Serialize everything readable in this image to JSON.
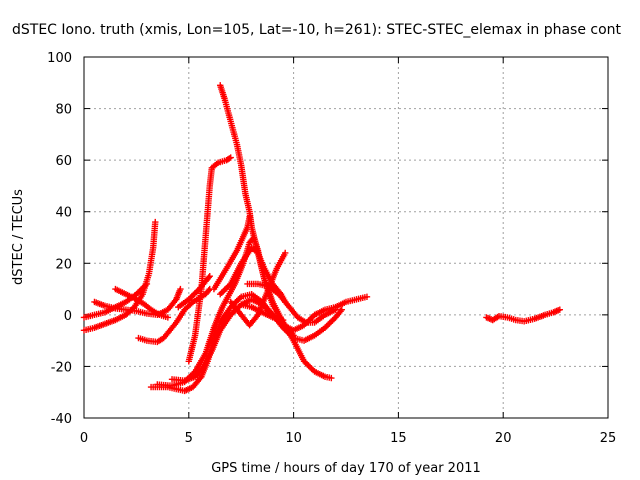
{
  "chart_data": {
    "type": "scatter",
    "title": "dSTEC Iono. truth (xmis, Lon=105, Lat=-10, h=261): STEC-STEC_elemax in phase cont",
    "xlabel": "GPS time / hours of day 170 of year 2011",
    "ylabel": "dSTEC  / TECUs",
    "xlim": [
      0,
      25
    ],
    "ylim": [
      -40,
      100
    ],
    "xticks": [
      0,
      5,
      10,
      15,
      20,
      25
    ],
    "yticks": [
      -40,
      -20,
      0,
      20,
      40,
      60,
      80,
      100
    ],
    "grid": true,
    "marker": "+",
    "color": "#ff0000",
    "series": [
      {
        "points": [
          [
            0,
            -6
          ],
          [
            0.5,
            -5
          ],
          [
            1,
            -3.5
          ],
          [
            1.5,
            -2
          ],
          [
            2,
            0
          ],
          [
            2.4,
            3
          ],
          [
            2.8,
            8
          ],
          [
            3.1,
            16
          ],
          [
            3.3,
            26
          ],
          [
            3.4,
            36
          ]
        ]
      },
      {
        "points": [
          [
            0,
            -1
          ],
          [
            0.5,
            0
          ],
          [
            1,
            1
          ],
          [
            1.5,
            3
          ],
          [
            2,
            5
          ],
          [
            2.5,
            8
          ],
          [
            3,
            12
          ]
        ]
      },
      {
        "points": [
          [
            0.5,
            5
          ],
          [
            1,
            3.5
          ],
          [
            1.5,
            2.5
          ],
          [
            2,
            2
          ],
          [
            2.5,
            1.5
          ],
          [
            3,
            0.5
          ],
          [
            3.5,
            0
          ],
          [
            4,
            2
          ],
          [
            4.4,
            6
          ],
          [
            4.6,
            10
          ]
        ]
      },
      {
        "points": [
          [
            1.5,
            10
          ],
          [
            2,
            8
          ],
          [
            2.5,
            6
          ],
          [
            2.9,
            4
          ],
          [
            3.2,
            2
          ],
          [
            3.6,
            0
          ],
          [
            4,
            -1
          ]
        ]
      },
      {
        "points": [
          [
            2.6,
            -9
          ],
          [
            3,
            -10
          ],
          [
            3.5,
            -10.5
          ],
          [
            3.8,
            -9
          ],
          [
            4.1,
            -6
          ],
          [
            4.4,
            -3
          ],
          [
            4.8,
            2
          ],
          [
            5.2,
            5
          ],
          [
            5.8,
            8
          ],
          [
            6,
            10
          ]
        ]
      },
      {
        "points": [
          [
            4.5,
            3
          ],
          [
            5,
            6
          ],
          [
            5.5,
            10
          ],
          [
            5.8,
            13
          ],
          [
            6,
            15
          ]
        ]
      },
      {
        "points": [
          [
            3.2,
            -28
          ],
          [
            4,
            -28
          ],
          [
            4.8,
            -29.5
          ],
          [
            5.2,
            -28
          ],
          [
            5.6,
            -24
          ],
          [
            5.9,
            -18
          ],
          [
            6.2,
            -10
          ],
          [
            6.5,
            -3
          ],
          [
            7,
            3
          ],
          [
            7.5,
            7
          ],
          [
            8,
            8
          ],
          [
            8.5,
            5
          ],
          [
            9,
            0
          ],
          [
            9.5,
            -5
          ],
          [
            10,
            -9
          ],
          [
            10.5,
            -10
          ],
          [
            11,
            -8
          ],
          [
            11.5,
            -5
          ],
          [
            12,
            -1
          ],
          [
            12.3,
            2
          ]
        ]
      },
      {
        "points": [
          [
            3.5,
            -27
          ],
          [
            4.2,
            -27.5
          ],
          [
            4.8,
            -26
          ],
          [
            5.3,
            -22
          ],
          [
            5.8,
            -15
          ],
          [
            6.2,
            -5
          ],
          [
            6.6,
            3
          ],
          [
            7.2,
            12
          ],
          [
            7.6,
            20
          ],
          [
            7.9,
            28
          ],
          [
            8.1,
            30
          ],
          [
            8.3,
            25
          ],
          [
            8.6,
            14
          ],
          [
            9,
            4
          ],
          [
            9.5,
            -3
          ],
          [
            10,
            -8
          ]
        ]
      },
      {
        "points": [
          [
            4.2,
            -25
          ],
          [
            4.8,
            -25.5
          ],
          [
            5.3,
            -24
          ],
          [
            5.7,
            -20
          ],
          [
            6.1,
            -14
          ],
          [
            6.5,
            -6
          ],
          [
            7,
            0
          ],
          [
            7.5,
            4
          ],
          [
            8,
            6
          ],
          [
            8.5,
            4
          ],
          [
            9,
            0
          ],
          [
            9.5,
            -4
          ],
          [
            10,
            -6
          ],
          [
            10.5,
            -4
          ],
          [
            11,
            0
          ],
          [
            11.5,
            2
          ],
          [
            12,
            3
          ],
          [
            12.5,
            5
          ],
          [
            13,
            6
          ],
          [
            13.5,
            7
          ]
        ]
      },
      {
        "points": [
          [
            5.0,
            -18
          ],
          [
            5.3,
            -8
          ],
          [
            5.6,
            10
          ],
          [
            5.8,
            30
          ],
          [
            6,
            50
          ],
          [
            6.1,
            57
          ],
          [
            6.4,
            59
          ],
          [
            6.8,
            60
          ],
          [
            7,
            61
          ]
        ]
      },
      {
        "points": [
          [
            6.5,
            89
          ],
          [
            6.7,
            84
          ],
          [
            7,
            75
          ],
          [
            7.3,
            66
          ],
          [
            7.5,
            58
          ],
          [
            7.7,
            47
          ],
          [
            7.9,
            40
          ],
          [
            8.0,
            34
          ],
          [
            8.3,
            24
          ],
          [
            8.6,
            14
          ],
          [
            9,
            5
          ],
          [
            9.5,
            -3
          ],
          [
            10,
            -10
          ],
          [
            10.5,
            -18
          ],
          [
            11,
            -22
          ],
          [
            11.5,
            -24
          ],
          [
            11.8,
            -24.5
          ]
        ]
      },
      {
        "points": [
          [
            6.5,
            8
          ],
          [
            7,
            12
          ],
          [
            7.5,
            20
          ],
          [
            8,
            26
          ],
          [
            8.3,
            24
          ],
          [
            8.6,
            18
          ],
          [
            9,
            12
          ],
          [
            9.4,
            8
          ],
          [
            9.6,
            5
          ]
        ]
      },
      {
        "points": [
          [
            6.2,
            10
          ],
          [
            6.8,
            18
          ],
          [
            7.3,
            25
          ],
          [
            7.8,
            34
          ],
          [
            7.9,
            38
          ]
        ]
      },
      {
        "points": [
          [
            7,
            5
          ],
          [
            7.5,
            0
          ],
          [
            7.9,
            -4
          ],
          [
            8.3,
            0
          ],
          [
            8.8,
            10
          ],
          [
            9.2,
            18
          ],
          [
            9.6,
            24
          ]
        ]
      },
      {
        "points": [
          [
            7.8,
            12
          ],
          [
            8.3,
            12
          ],
          [
            8.8,
            11
          ],
          [
            9.3,
            8
          ],
          [
            9.8,
            3
          ],
          [
            10.2,
            -1
          ],
          [
            10.6,
            -3
          ],
          [
            11,
            -3
          ],
          [
            11.5,
            0
          ],
          [
            12,
            2
          ]
        ]
      },
      {
        "points": [
          [
            7.5,
            4
          ],
          [
            8,
            3
          ],
          [
            8.5,
            1
          ],
          [
            9,
            -1
          ],
          [
            9.5,
            -2
          ]
        ]
      },
      {
        "points": [
          [
            19.2,
            -1
          ],
          [
            19.5,
            -2
          ],
          [
            19.8,
            -0.5
          ],
          [
            20.2,
            -1
          ],
          [
            20.6,
            -2
          ],
          [
            21,
            -2.5
          ],
          [
            21.5,
            -1.5
          ],
          [
            22,
            0
          ],
          [
            22.4,
            1
          ],
          [
            22.7,
            2
          ]
        ]
      }
    ]
  }
}
